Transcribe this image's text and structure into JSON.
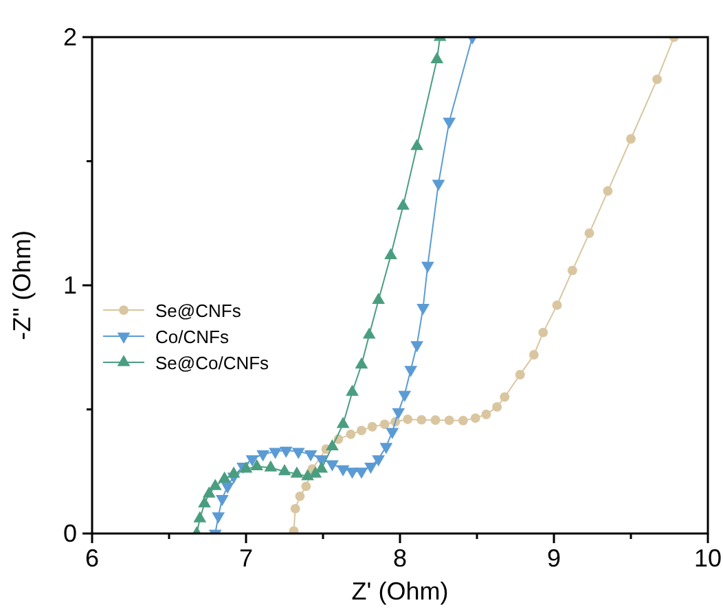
{
  "chart_data": {
    "type": "line",
    "xlabel": "Z' (Ohm)",
    "ylabel": "-Z'' (Ohm)",
    "xlim": [
      6,
      10
    ],
    "ylim": [
      0,
      2
    ],
    "xticks": [
      6,
      {
        "value": 6.5,
        "label": null
      },
      7,
      {
        "value": 7.5,
        "label": null
      },
      8,
      {
        "value": 8.5,
        "label": null
      },
      9,
      {
        "value": 9.5,
        "label": null
      },
      10
    ],
    "yticks": [
      0,
      {
        "value": 0.5,
        "label": null
      },
      1,
      {
        "value": 1.5,
        "label": null
      },
      2
    ],
    "grid": false,
    "legend": "left",
    "series": [
      {
        "name": "Se@CNFs",
        "color": "#d9c6a0",
        "marker": "circle",
        "x": [
          7.31,
          7.32,
          7.35,
          7.39,
          7.43,
          7.52,
          7.6,
          7.68,
          7.75,
          7.82,
          7.9,
          7.97,
          8.05,
          8.14,
          8.23,
          8.32,
          8.41,
          8.49,
          8.56,
          8.63,
          8.68,
          8.78,
          8.87,
          8.93,
          9.02,
          9.12,
          9.23,
          9.35,
          9.5,
          9.67,
          9.78
        ],
        "values": [
          0.01,
          0.1,
          0.15,
          0.19,
          0.26,
          0.34,
          0.38,
          0.4,
          0.415,
          0.43,
          0.44,
          0.45,
          0.46,
          0.458,
          0.457,
          0.456,
          0.455,
          0.465,
          0.48,
          0.51,
          0.55,
          0.64,
          0.72,
          0.81,
          0.92,
          1.06,
          1.21,
          1.38,
          1.59,
          1.83,
          2.0
        ]
      },
      {
        "name": "Co/CNFs",
        "color": "#5b9bd5",
        "marker": "triangle-down",
        "x": [
          6.8,
          6.82,
          6.845,
          6.88,
          6.92,
          6.98,
          7.04,
          7.11,
          7.19,
          7.26,
          7.34,
          7.42,
          7.49,
          7.56,
          7.63,
          7.69,
          7.75,
          7.81,
          7.86,
          7.91,
          7.95,
          7.99,
          8.03,
          8.07,
          8.11,
          8.15,
          8.18,
          8.25,
          8.32,
          8.47
        ],
        "values": [
          0.0,
          0.07,
          0.14,
          0.19,
          0.23,
          0.27,
          0.3,
          0.32,
          0.33,
          0.335,
          0.33,
          0.32,
          0.3,
          0.28,
          0.26,
          0.25,
          0.25,
          0.27,
          0.3,
          0.35,
          0.41,
          0.49,
          0.56,
          0.66,
          0.76,
          0.91,
          1.08,
          1.41,
          1.66,
          2.0
        ]
      },
      {
        "name": "Se@Co/CNFs",
        "color": "#4a9e80",
        "marker": "triangle",
        "x": [
          6.68,
          6.7,
          6.73,
          6.76,
          6.8,
          6.86,
          6.92,
          7.0,
          7.07,
          7.16,
          7.25,
          7.33,
          7.4,
          7.45,
          7.49,
          7.56,
          7.63,
          7.69,
          7.75,
          7.8,
          7.86,
          7.94,
          8.02,
          8.11,
          8.24,
          8.26
        ],
        "values": [
          0.0,
          0.06,
          0.12,
          0.16,
          0.19,
          0.22,
          0.24,
          0.26,
          0.27,
          0.265,
          0.25,
          0.24,
          0.23,
          0.24,
          0.26,
          0.35,
          0.44,
          0.57,
          0.68,
          0.8,
          0.94,
          1.12,
          1.32,
          1.56,
          1.91,
          2.0
        ]
      }
    ]
  }
}
